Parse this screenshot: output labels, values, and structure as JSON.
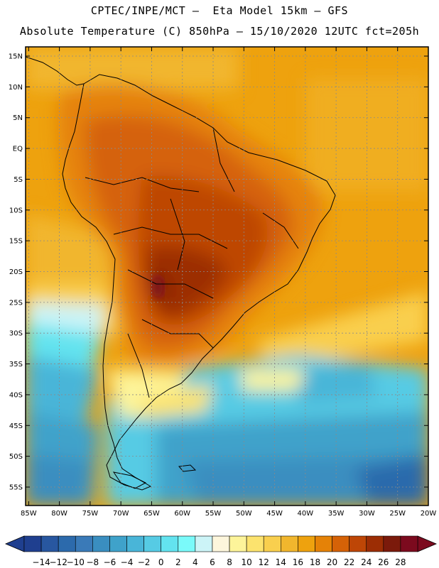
{
  "header": {
    "line1": "CPTEC/INPE/MCT –  Eta Model 15km – GFS",
    "line2": "Absolute Temperature (C) 850hPa – 15/10/2020 12UTC fct=205h"
  },
  "map": {
    "lat_labels": [
      "15N",
      "10N",
      "5N",
      "EQ",
      "5S",
      "10S",
      "15S",
      "20S",
      "25S",
      "30S",
      "35S",
      "40S",
      "45S",
      "50S",
      "55S"
    ],
    "lat_values": [
      15,
      10,
      5,
      0,
      -5,
      -10,
      -15,
      -20,
      -25,
      -30,
      -35,
      -40,
      -45,
      -50,
      -55
    ],
    "lon_labels": [
      "85W",
      "80W",
      "75W",
      "70W",
      "65W",
      "60W",
      "55W",
      "50W",
      "45W",
      "40W",
      "35W",
      "30W",
      "25W",
      "20W"
    ],
    "lon_values": [
      -85,
      -80,
      -75,
      -70,
      -65,
      -60,
      -55,
      -50,
      -45,
      -40,
      -35,
      -30,
      -25,
      -20
    ],
    "lat_range": [
      -58,
      16.5
    ],
    "lon_range": [
      -85.5,
      -20
    ]
  },
  "colorbar": {
    "labels": [
      "-14",
      "-12",
      "-10",
      "-8",
      "-6",
      "-4",
      "-2",
      "0",
      "2",
      "4",
      "6",
      "8",
      "10",
      "12",
      "14",
      "16",
      "18",
      "20",
      "22",
      "24",
      "26",
      "28"
    ],
    "colors": [
      "#1f3f8f",
      "#2857a0",
      "#2c6aac",
      "#3a7ab8",
      "#3a8ec0",
      "#3fa2ca",
      "#49b5d8",
      "#56cbe4",
      "#63e3ef",
      "#7afafa",
      "#ccf4f7",
      "#fdf6dc",
      "#fdf49a",
      "#fce36e",
      "#f9cf4e",
      "#f1b62d",
      "#eea20e",
      "#e58207",
      "#d56207",
      "#be4606",
      "#9c2d04",
      "#7b1a0b",
      "#7c0a1e"
    ]
  }
}
